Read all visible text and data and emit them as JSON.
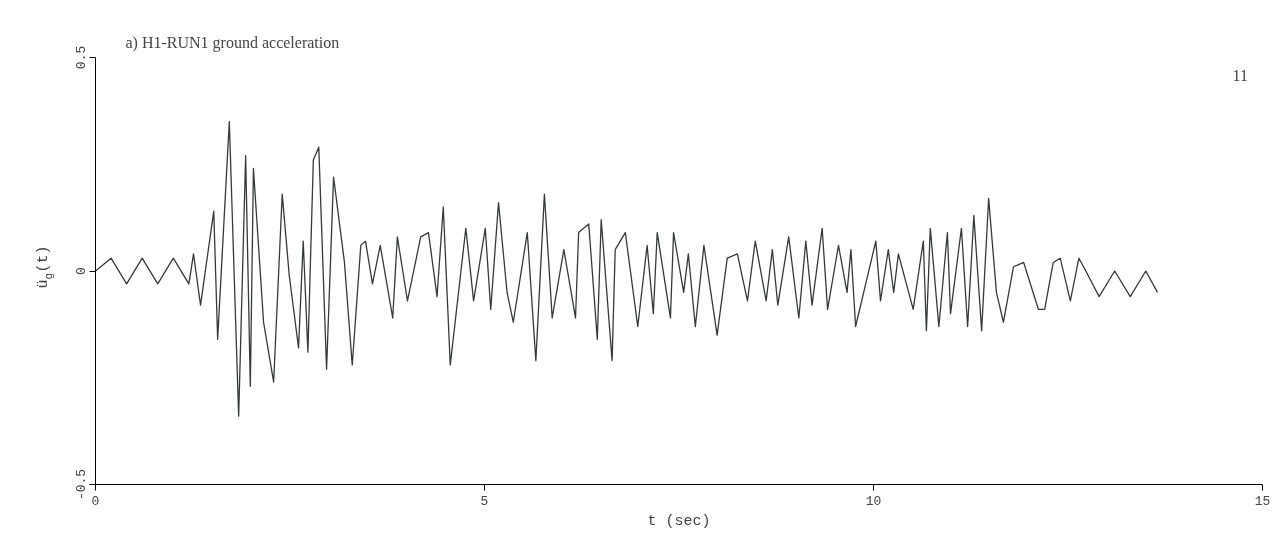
{
  "chart_data": {
    "type": "line",
    "title": "a) H1-RUN1 ground acceleration",
    "xlabel": "t (sec)",
    "ylabel": "ü$_{g}$(t)",
    "annotations": [
      "11"
    ],
    "xlim": [
      0,
      15
    ],
    "ylim": [
      -0.5,
      0.5
    ],
    "xticks": [
      0,
      5,
      10,
      15
    ],
    "yticks": [
      -0.5,
      0,
      0.5
    ],
    "grid": false,
    "series": [
      {
        "color": "#333a38",
        "x": [
          0,
          0.2,
          0.4,
          0.6,
          0.8,
          1.0,
          1.2,
          1.26,
          1.35,
          1.52,
          1.57,
          1.72,
          1.84,
          1.93,
          1.99,
          2.03,
          2.16,
          2.29,
          2.4,
          2.49,
          2.61,
          2.67,
          2.73,
          2.8,
          2.87,
          2.97,
          3.06,
          3.2,
          3.3,
          3.41,
          3.47,
          3.56,
          3.66,
          3.82,
          3.88,
          4.01,
          4.18,
          4.28,
          4.39,
          4.47,
          4.56,
          4.76,
          4.86,
          5.01,
          5.08,
          5.18,
          5.29,
          5.37,
          5.55,
          5.66,
          5.77,
          5.87,
          6.02,
          6.17,
          6.21,
          6.34,
          6.45,
          6.5,
          6.64,
          6.68,
          6.81,
          6.97,
          7.09,
          7.17,
          7.22,
          7.39,
          7.43,
          7.56,
          7.62,
          7.71,
          7.82,
          7.99,
          8.12,
          8.25,
          8.38,
          8.48,
          8.62,
          8.7,
          8.77,
          8.91,
          9.04,
          9.13,
          9.21,
          9.34,
          9.41,
          9.55,
          9.66,
          9.71,
          9.77,
          10.03,
          10.09,
          10.19,
          10.26,
          10.32,
          10.51,
          10.64,
          10.68,
          10.73,
          10.84,
          10.95,
          10.99,
          11.13,
          11.21,
          11.29,
          11.39,
          11.48,
          11.58,
          11.67,
          11.8,
          11.93,
          12.12,
          12.2,
          12.31,
          12.4,
          12.53,
          12.64,
          12.7,
          12.9,
          13.1,
          13.3,
          13.5,
          13.65
        ],
        "values": [
          0.0,
          0.03,
          -0.03,
          0.03,
          -0.03,
          0.03,
          -0.03,
          0.04,
          -0.08,
          0.14,
          -0.16,
          0.35,
          -0.34,
          0.27,
          -0.27,
          0.24,
          -0.12,
          -0.26,
          0.18,
          -0.01,
          -0.18,
          0.07,
          -0.19,
          0.26,
          0.29,
          -0.23,
          0.22,
          0.02,
          -0.22,
          0.06,
          0.07,
          -0.03,
          0.06,
          -0.11,
          0.08,
          -0.07,
          0.08,
          0.09,
          -0.06,
          0.15,
          -0.22,
          0.1,
          -0.07,
          0.1,
          -0.09,
          0.16,
          -0.05,
          -0.12,
          0.09,
          -0.21,
          0.18,
          -0.11,
          0.05,
          -0.11,
          0.09,
          0.11,
          -0.16,
          0.12,
          -0.21,
          0.05,
          0.09,
          -0.13,
          0.06,
          -0.1,
          0.09,
          -0.11,
          0.09,
          -0.05,
          0.04,
          -0.13,
          0.06,
          -0.15,
          0.03,
          0.04,
          -0.07,
          0.07,
          -0.07,
          0.05,
          -0.08,
          0.08,
          -0.11,
          0.07,
          -0.08,
          0.1,
          -0.09,
          0.06,
          -0.05,
          0.05,
          -0.13,
          0.07,
          -0.07,
          0.05,
          -0.05,
          0.04,
          -0.09,
          0.07,
          -0.14,
          0.1,
          -0.13,
          0.09,
          -0.1,
          0.1,
          -0.13,
          0.13,
          -0.14,
          0.17,
          -0.05,
          -0.12,
          0.01,
          0.02,
          -0.09,
          -0.09,
          0.02,
          0.03,
          -0.07,
          0.03,
          0.01,
          -0.06,
          0.0,
          -0.06,
          0.0,
          -0.05
        ]
      }
    ]
  }
}
